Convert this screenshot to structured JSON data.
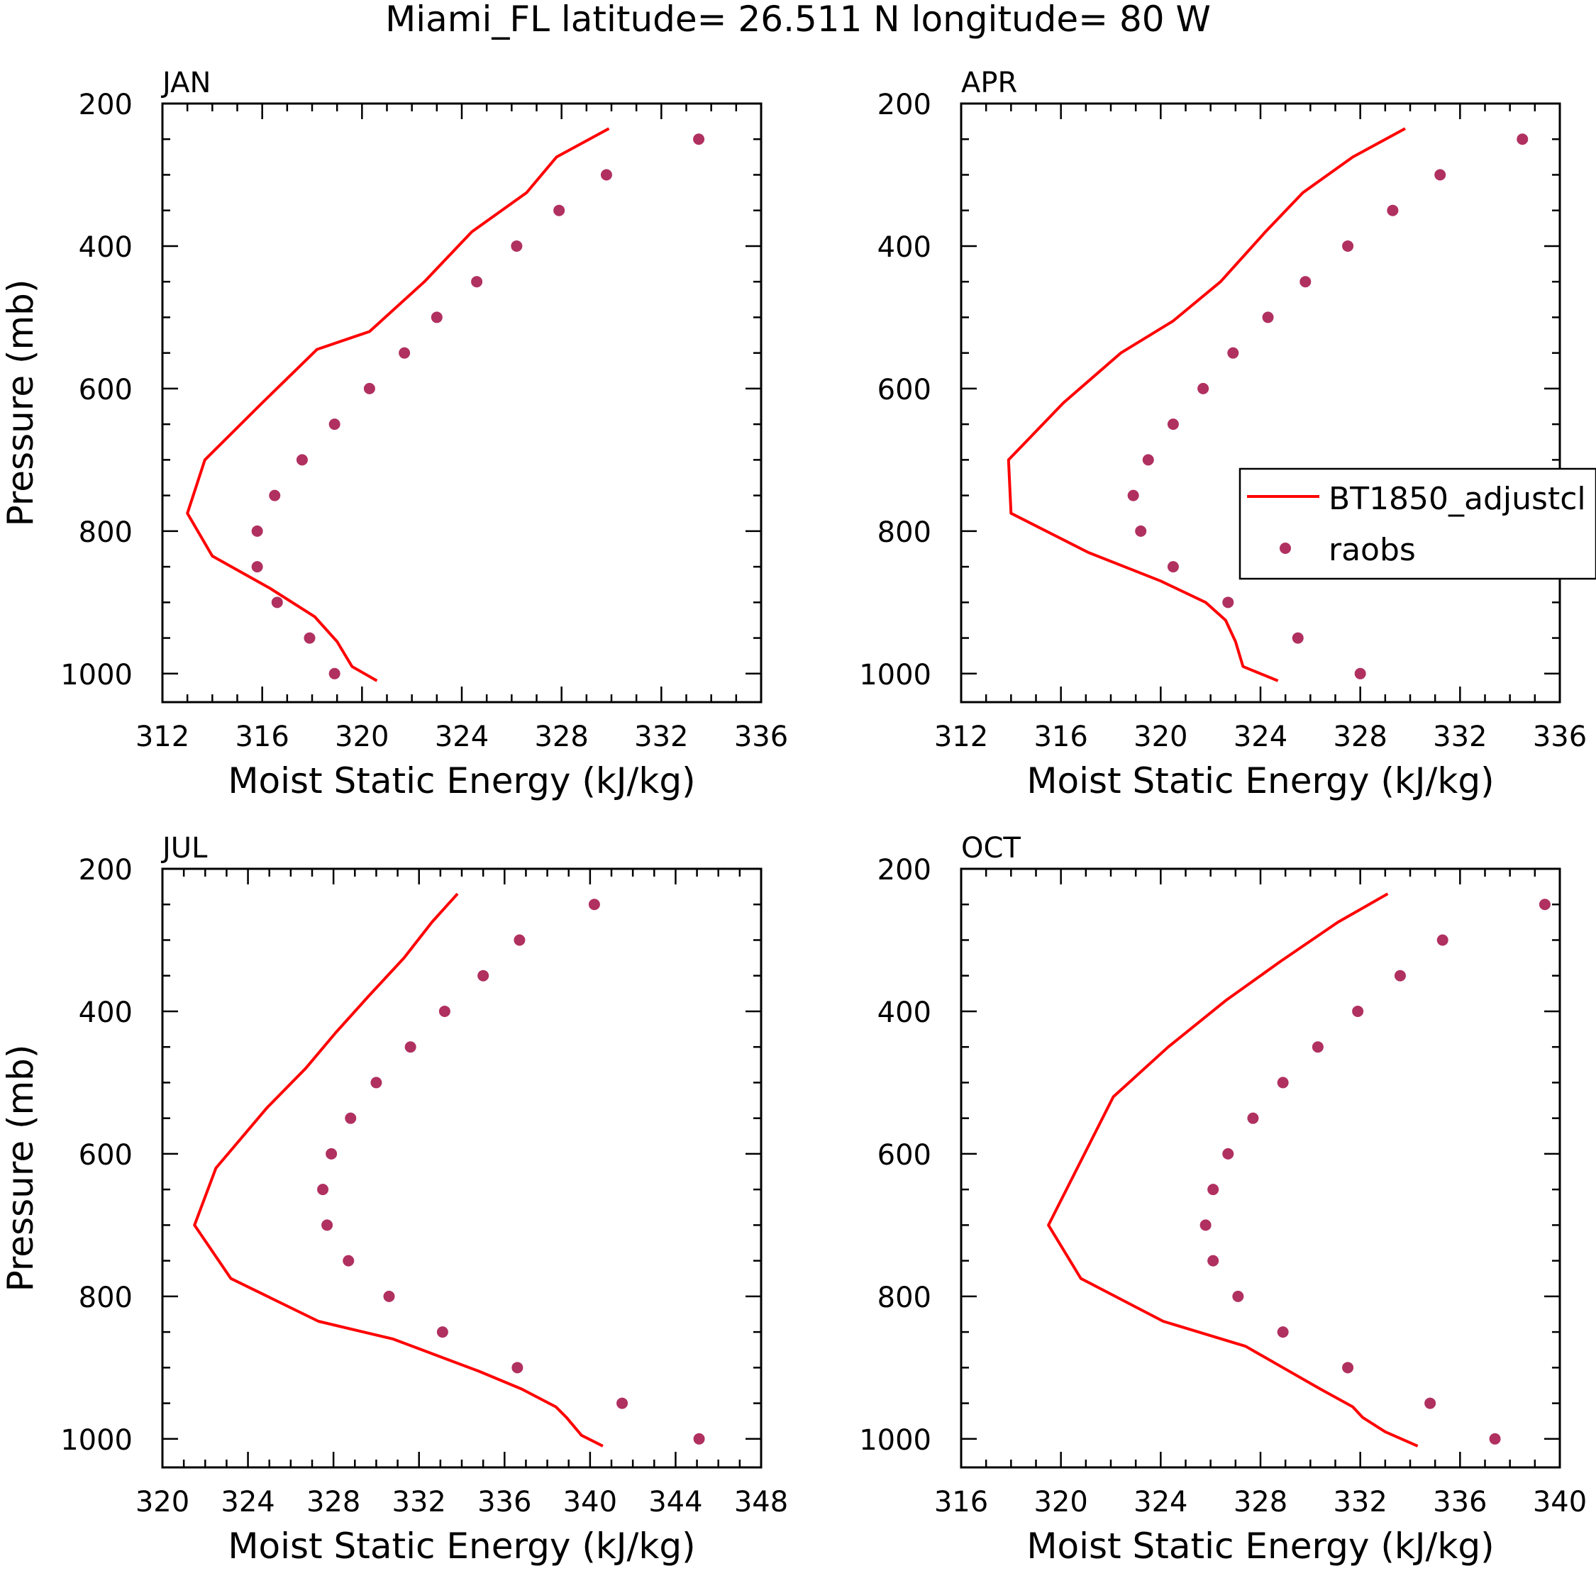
{
  "figure_title": "Miami_FL  latitude= 26.511 N longitude= 80 W",
  "colors": {
    "model_line": "#ff0000",
    "obs_marker": "#b03060",
    "axis": "#000000"
  },
  "legend": {
    "line_label": "BT1850_adjustcl",
    "marker_label": "raobs",
    "panel": "APR",
    "placement": "middle-right"
  },
  "chart_data": [
    {
      "type": "line+scatter",
      "title": "JAN",
      "xlabel": "Moist Static Energy (kJ/kg)",
      "ylabel": "Pressure (mb)",
      "xlim": [
        312,
        336
      ],
      "xticks": [
        312,
        316,
        320,
        324,
        328,
        332,
        336
      ],
      "ylim": [
        1040,
        200
      ],
      "yticks": [
        200,
        400,
        600,
        800,
        1000
      ],
      "series": [
        {
          "name": "BT1850_adjustcl",
          "style": "line",
          "x": [
            329.9,
            327.8,
            326.6,
            324.4,
            322.5,
            320.3,
            318.2,
            316.0,
            313.7,
            313.0,
            314.0,
            316.3,
            318.1,
            319.0,
            319.6,
            320.6
          ],
          "y": [
            235,
            275,
            325,
            380,
            450,
            520,
            545,
            620,
            700,
            775,
            835,
            880,
            920,
            955,
            990,
            1010
          ]
        },
        {
          "name": "raobs",
          "style": "markers",
          "x": [
            333.5,
            329.8,
            327.9,
            326.2,
            324.6,
            323.0,
            321.7,
            320.3,
            318.9,
            317.6,
            316.5,
            315.8,
            315.8,
            316.6,
            317.9,
            318.9
          ],
          "y": [
            250,
            300,
            350,
            400,
            450,
            500,
            550,
            600,
            650,
            700,
            750,
            800,
            850,
            900,
            950,
            1000
          ]
        }
      ]
    },
    {
      "type": "line+scatter",
      "title": "APR",
      "xlabel": "Moist Static Energy (kJ/kg)",
      "ylabel": "Pressure (mb)",
      "xlim": [
        312,
        336
      ],
      "xticks": [
        312,
        316,
        320,
        324,
        328,
        332,
        336
      ],
      "ylim": [
        1040,
        200
      ],
      "yticks": [
        200,
        400,
        600,
        800,
        1000
      ],
      "series": [
        {
          "name": "BT1850_adjustcl",
          "style": "line",
          "x": [
            329.8,
            327.7,
            325.7,
            324.2,
            322.4,
            320.5,
            318.4,
            316.1,
            313.9,
            314.0,
            317.1,
            320.0,
            321.8,
            322.6,
            323.0,
            323.3,
            324.7
          ],
          "y": [
            235,
            275,
            325,
            380,
            450,
            505,
            550,
            620,
            700,
            775,
            830,
            870,
            900,
            925,
            955,
            990,
            1010
          ]
        },
        {
          "name": "raobs",
          "style": "markers",
          "x": [
            334.5,
            331.2,
            329.3,
            327.5,
            325.8,
            324.3,
            322.9,
            321.7,
            320.5,
            319.5,
            318.9,
            319.2,
            320.5,
            322.7,
            325.5,
            328.0
          ],
          "y": [
            250,
            300,
            350,
            400,
            450,
            500,
            550,
            600,
            650,
            700,
            750,
            800,
            850,
            900,
            950,
            1000
          ]
        }
      ]
    },
    {
      "type": "line+scatter",
      "title": "JUL",
      "xlabel": "Moist Static Energy (kJ/kg)",
      "ylabel": "Pressure (mb)",
      "xlim": [
        320,
        348
      ],
      "xticks": [
        320,
        324,
        328,
        332,
        336,
        340,
        344,
        348
      ],
      "ylim": [
        1040,
        200
      ],
      "yticks": [
        200,
        400,
        600,
        800,
        1000
      ],
      "series": [
        {
          "name": "BT1850_adjustcl",
          "style": "line",
          "x": [
            333.8,
            332.6,
            331.3,
            329.6,
            328.1,
            326.7,
            324.9,
            322.5,
            321.5,
            323.2,
            327.3,
            330.8,
            334.8,
            336.8,
            338.4,
            338.9,
            339.6,
            340.6
          ],
          "y": [
            235,
            275,
            325,
            380,
            430,
            480,
            535,
            620,
            700,
            775,
            835,
            860,
            905,
            930,
            955,
            970,
            995,
            1010
          ]
        },
        {
          "name": "raobs",
          "style": "markers",
          "x": [
            340.2,
            336.7,
            335.0,
            333.2,
            331.6,
            330.0,
            328.8,
            327.9,
            327.5,
            327.7,
            328.7,
            330.6,
            333.1,
            336.6,
            341.5,
            345.1
          ],
          "y": [
            250,
            300,
            350,
            400,
            450,
            500,
            550,
            600,
            650,
            700,
            750,
            800,
            850,
            900,
            950,
            1000
          ]
        }
      ]
    },
    {
      "type": "line+scatter",
      "title": "OCT",
      "xlabel": "Moist Static Energy (kJ/kg)",
      "ylabel": "Pressure (mb)",
      "xlim": [
        316,
        340
      ],
      "xticks": [
        316,
        320,
        324,
        328,
        332,
        336,
        340
      ],
      "ylim": [
        1040,
        200
      ],
      "yticks": [
        200,
        400,
        600,
        800,
        1000
      ],
      "series": [
        {
          "name": "BT1850_adjustcl",
          "style": "line",
          "x": [
            333.1,
            331.1,
            328.8,
            326.6,
            324.3,
            322.1,
            319.5,
            320.8,
            324.1,
            327.4,
            328.9,
            330.4,
            331.7,
            332.1,
            333.0,
            334.3
          ],
          "y": [
            235,
            275,
            330,
            385,
            450,
            520,
            700,
            775,
            835,
            870,
            900,
            930,
            955,
            970,
            990,
            1010
          ]
        },
        {
          "name": "raobs",
          "style": "markers",
          "x": [
            339.4,
            335.3,
            333.6,
            331.9,
            330.3,
            328.9,
            327.7,
            326.7,
            326.1,
            325.8,
            326.1,
            327.1,
            328.9,
            331.5,
            334.8,
            337.4
          ],
          "y": [
            250,
            300,
            350,
            400,
            450,
            500,
            550,
            600,
            650,
            700,
            750,
            800,
            850,
            900,
            950,
            1000
          ]
        }
      ]
    }
  ]
}
